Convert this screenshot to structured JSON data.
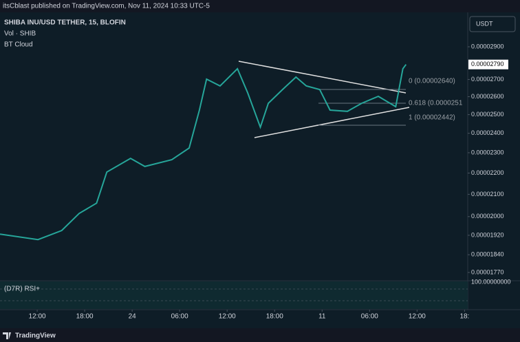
{
  "header": "itsCblast published on TradingView.com, Nov 11, 2024 10:33 UTC-5",
  "footer": "TradingView",
  "currency_button": "USDT",
  "indicators": [
    "Vol · SHIB",
    "BT Cloud"
  ],
  "rsi_label": "(D7R) RSI+",
  "rsi_axis_label": "100.00000000",
  "current_price_label": "0.00002790",
  "fib_labels": [
    "0 (0.00002640)",
    "0.618 (0.0000251",
    "1 (0.00002442)"
  ],
  "chart_data": {
    "type": "line",
    "title": "SHIBA INU/USD TETHER, 15, BLOFIN",
    "log_scale": true,
    "grid": false,
    "color": "#26a69a",
    "x": [
      7.3,
      12.1,
      15.1,
      17.3,
      19.5,
      20.8,
      23.8,
      25.6,
      29.0,
      31.2,
      32.5,
      33.4,
      35.1,
      37.3,
      38.6,
      40.2,
      41.2,
      43.0,
      44.7,
      46.0,
      47.7,
      49.0,
      51.2,
      53.0,
      55.1,
      57.3,
      58.2,
      58.6
    ],
    "values": [
      1.925e-05,
      1.902e-05,
      1.94e-05,
      2.014e-05,
      2.06e-05,
      2.205e-05,
      2.272e-05,
      2.232e-05,
      2.265e-05,
      2.324e-05,
      2.525e-05,
      2.702e-05,
      2.662e-05,
      2.764e-05,
      2.622e-05,
      2.432e-05,
      2.563e-05,
      2.641e-05,
      2.714e-05,
      2.662e-05,
      2.641e-05,
      2.525e-05,
      2.518e-05,
      2.563e-05,
      2.602e-05,
      2.544e-05,
      2.764e-05,
      2.79e-05
    ],
    "xlim": [
      7.3,
      66.4
    ],
    "xticks": [
      {
        "value": 12,
        "label": "12:00"
      },
      {
        "value": 18,
        "label": "18:00"
      },
      24,
      {
        "value": 30,
        "label": "06:00"
      },
      {
        "value": 36,
        "label": "12:00"
      },
      {
        "value": 42,
        "label": "18:00"
      },
      {
        "value": 48,
        "label": "11"
      },
      {
        "value": 54,
        "label": "06:00"
      },
      {
        "value": 60,
        "label": "12:00"
      },
      {
        "value": 66,
        "label": "18:"
      }
    ],
    "ylim": [
      1.746e-05,
      3.108e-05
    ],
    "yticks": [
      {
        "value": 2.9e-05,
        "label": "0.00002900"
      },
      {
        "value": 2.7e-05,
        "label": "0.00002700"
      },
      {
        "value": 2.6e-05,
        "label": "0.00002600"
      },
      {
        "value": 2.5e-05,
        "label": "0.00002500"
      },
      {
        "value": 2.4e-05,
        "label": "0.00002400"
      },
      {
        "value": 2.3e-05,
        "label": "0.00002300"
      },
      {
        "value": 2.2e-05,
        "label": "0.00002200"
      },
      {
        "value": 2.1e-05,
        "label": "0.00002100"
      },
      {
        "value": 2e-05,
        "label": "0.00002000"
      },
      {
        "value": 1.92e-05,
        "label": "0.00001920"
      },
      {
        "value": 1.84e-05,
        "label": "0.00001840"
      },
      {
        "value": 1.77e-05,
        "label": "0.00001770"
      }
    ]
  }
}
